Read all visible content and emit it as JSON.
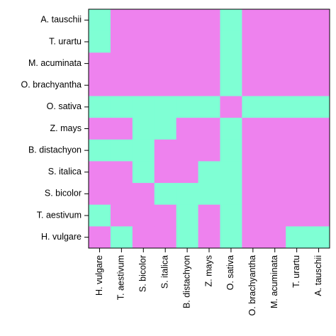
{
  "chart_data": {
    "type": "heatmap",
    "title": "",
    "xlabel": "",
    "ylabel": "",
    "x_categories": [
      "H. vulgare",
      "T. aestivum",
      "S. bicolor",
      "S. italica",
      "B. distachyon",
      "Z. mays",
      "O. sativa",
      "O. brachyantha",
      "M. acuminata",
      "T. urartu",
      "A. tauschii"
    ],
    "y_categories": [
      "A. tauschii",
      "T. urartu",
      "M. acuminata",
      "O. brachyantha",
      "O. sativa",
      "Z. mays",
      "B. distachyon",
      "S. italica",
      "S. bicolor",
      "T. aestivum",
      "H. vulgare"
    ],
    "colors": {
      "0": "#ee82ee",
      "1": "#7fffd4"
    },
    "values": [
      [
        1,
        0,
        0,
        0,
        0,
        0,
        1,
        0,
        0,
        0,
        0
      ],
      [
        1,
        0,
        0,
        0,
        0,
        0,
        1,
        0,
        0,
        0,
        0
      ],
      [
        0,
        0,
        0,
        0,
        0,
        0,
        1,
        0,
        0,
        0,
        0
      ],
      [
        0,
        0,
        0,
        0,
        0,
        0,
        1,
        0,
        0,
        0,
        0
      ],
      [
        1,
        1,
        1,
        1,
        1,
        1,
        0,
        1,
        1,
        1,
        1
      ],
      [
        0,
        0,
        1,
        1,
        0,
        0,
        1,
        0,
        0,
        0,
        0
      ],
      [
        1,
        1,
        1,
        0,
        0,
        0,
        1,
        0,
        0,
        0,
        0
      ],
      [
        0,
        0,
        1,
        0,
        0,
        1,
        1,
        0,
        0,
        0,
        0
      ],
      [
        0,
        0,
        0,
        1,
        1,
        1,
        1,
        0,
        0,
        0,
        0
      ],
      [
        1,
        0,
        0,
        0,
        1,
        0,
        1,
        0,
        0,
        0,
        0
      ],
      [
        0,
        1,
        0,
        0,
        1,
        0,
        1,
        0,
        0,
        1,
        1
      ]
    ]
  }
}
